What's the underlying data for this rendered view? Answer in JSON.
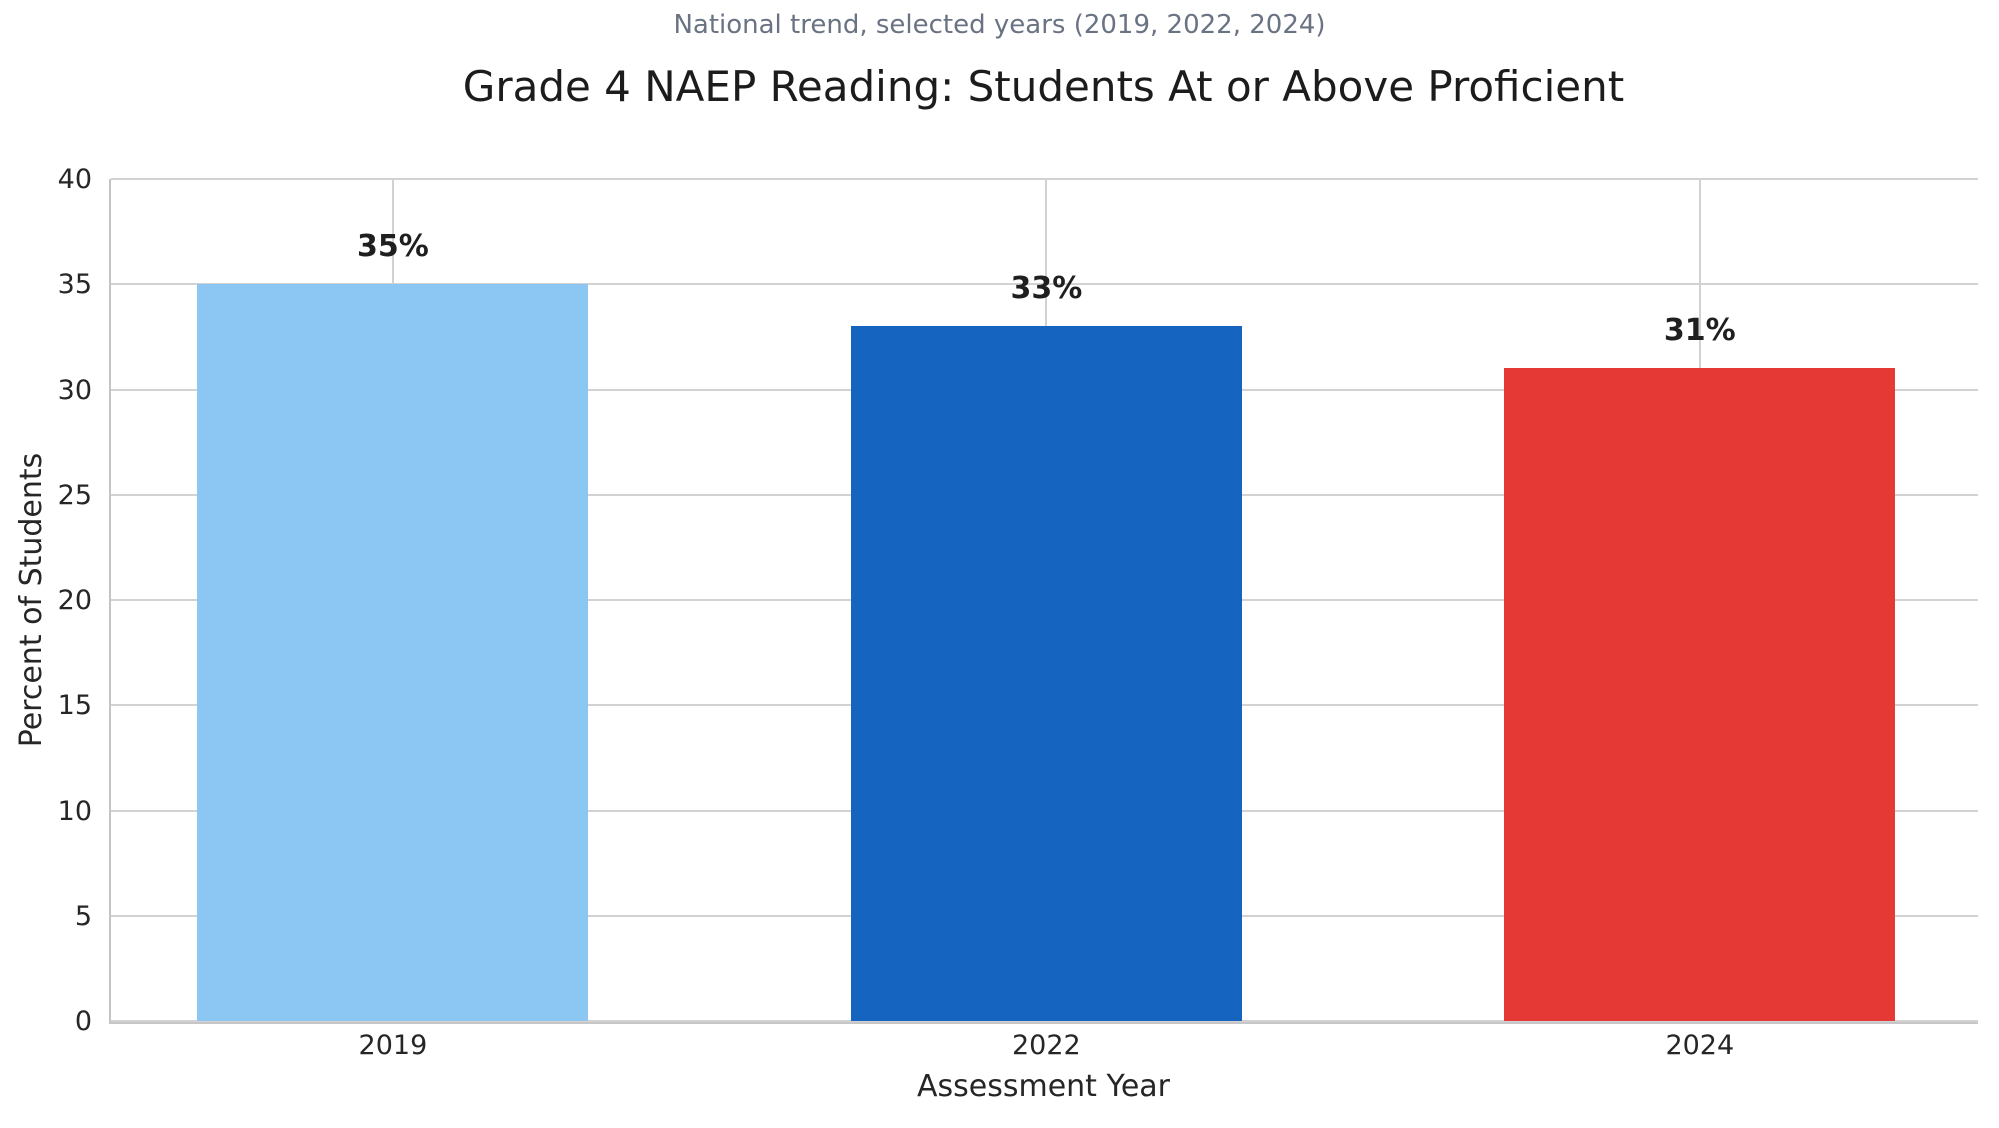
{
  "chart_data": {
    "type": "bar",
    "title": "Grade 4 NAEP Reading: Students At or Above Proficient",
    "subtitle": "National trend, selected years (2019, 2022, 2024)",
    "categories": [
      "2019",
      "2022",
      "2024"
    ],
    "values": [
      35,
      33,
      31
    ],
    "bar_labels": [
      "35%",
      "33%",
      "31%"
    ],
    "bar_colors": [
      "#8cc6f2",
      "#1565c0",
      "#e53935"
    ],
    "xlabel": "Assessment Year",
    "ylabel": "Percent of Students",
    "ylim": [
      0,
      40
    ],
    "yticks": [
      0,
      5,
      10,
      15,
      20,
      25,
      30,
      35,
      40
    ],
    "grid": true,
    "gridlines": "horizontal at every y tick, vertical at every category center",
    "legend": null,
    "colors": {
      "title": "#1c1c1c",
      "subtitle": "#6a7383",
      "tick_labels": "#262626",
      "value_labels": "#1f1f1f",
      "grid": "#d2d2d2",
      "spine": "#c4c4c4",
      "background": "#ffffff"
    }
  }
}
